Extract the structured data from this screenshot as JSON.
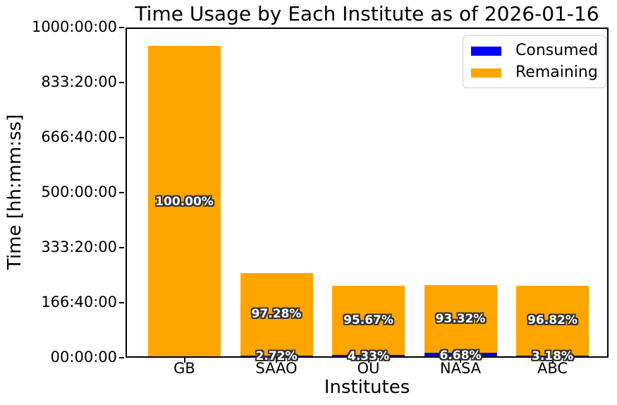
{
  "window": {
    "title": "Time Usage by Each Institute as of 2026-01-16"
  },
  "colors": {
    "consumed": "#0000ff",
    "remaining": "#ffa500",
    "spine": "#000000",
    "background": "#ffffff",
    "bar_label_text": "#ffffff",
    "bar_label_outline": "#333333",
    "legend_border": "#cccccc"
  },
  "chart_data": {
    "type": "bar",
    "stacked": true,
    "title": "Time Usage by Each Institute as of 2026-01-16",
    "xlabel": "Institutes",
    "ylabel": "Time [hh:mm:ss]",
    "categories": [
      "GB",
      "SAAO",
      "OU",
      "NASA",
      "ABC"
    ],
    "ylim_hours": [
      0,
      1000
    ],
    "ytick_labels": [
      "00:00:00",
      "166:40:00",
      "333:20:00",
      "500:00:00",
      "666:40:00",
      "833:20:00",
      "1000:00:00"
    ],
    "grid": false,
    "legend_position": "upper right",
    "series": [
      {
        "name": "Consumed",
        "color": "#0000ff",
        "values_hours": [
          0,
          7.0,
          9.5,
          14.7,
          7.0
        ],
        "pct_labels": [
          "",
          "2.72%",
          "4.33%",
          "6.68%",
          "3.18%"
        ]
      },
      {
        "name": "Remaining",
        "color": "#ffa500",
        "values_hours": [
          944.4,
          249.4,
          209.5,
          205.3,
          212.0
        ],
        "pct_labels": [
          "100.00%",
          "97.28%",
          "95.67%",
          "93.32%",
          "96.82%"
        ]
      }
    ],
    "totals_hours_est": [
      944.4,
      256.4,
      219.0,
      220.0,
      219.0
    ]
  }
}
